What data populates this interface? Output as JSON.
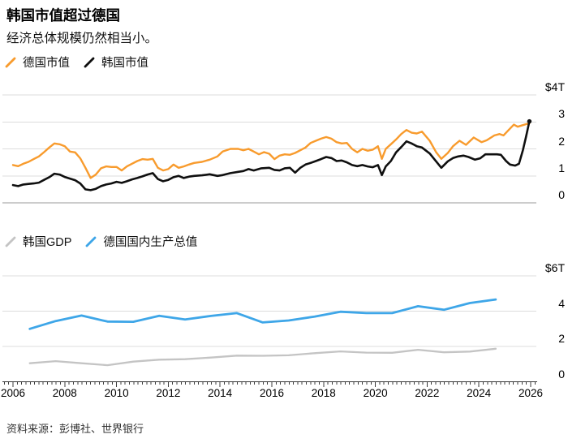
{
  "header": {
    "title": "韩国市值超过德国",
    "subtitle": "经济总体规模仍然相当小。"
  },
  "legends": {
    "market": [
      {
        "label": "德国市值",
        "color": "#F89B2D"
      },
      {
        "label": "韩国市值",
        "color": "#0F0F0F"
      }
    ],
    "gdp": [
      {
        "label": "韩国GDP",
        "color": "#C4C4C4"
      },
      {
        "label": "德国国内生产总值",
        "color": "#3EA6E8"
      }
    ]
  },
  "axes": {
    "top_yticks": [
      "$4T",
      "3",
      "2",
      "1",
      "0"
    ],
    "bottom_yticks": [
      "$6T",
      "4",
      "2",
      "0"
    ],
    "x_labels": [
      "2006",
      "2008",
      "2010",
      "2012",
      "2014",
      "2016",
      "2018",
      "2020",
      "2022",
      "2024",
      "2026"
    ]
  },
  "source": "资料来源：彭博社、世界银行",
  "colors": {
    "germany_market": "#F89B2D",
    "korea_market": "#0F0F0F",
    "korea_gdp": "#C4C4C4",
    "germany_gdp": "#3EA6E8",
    "gridline": "#DCDCDC",
    "zero_line_top": "#9A9A9A",
    "axis_line": "#3C3C3C"
  },
  "chart_data": [
    {
      "type": "line",
      "title": "市值 (股票市场总市值)",
      "unit": "$T",
      "ylim": [
        0,
        4
      ],
      "ytick_values": [
        0,
        1,
        2,
        3,
        4
      ],
      "x_range": [
        2006,
        2026.2
      ],
      "grid": true,
      "legend_position": "top-left",
      "series": [
        {
          "name": "德国市值",
          "color": "#F89B2D",
          "points": [
            [
              2006.0,
              1.4
            ],
            [
              2006.2,
              1.36
            ],
            [
              2006.4,
              1.45
            ],
            [
              2006.6,
              1.52
            ],
            [
              2006.8,
              1.62
            ],
            [
              2007.0,
              1.72
            ],
            [
              2007.2,
              1.88
            ],
            [
              2007.4,
              2.05
            ],
            [
              2007.6,
              2.2
            ],
            [
              2007.8,
              2.17
            ],
            [
              2008.0,
              2.1
            ],
            [
              2008.2,
              1.9
            ],
            [
              2008.4,
              1.87
            ],
            [
              2008.6,
              1.65
            ],
            [
              2008.8,
              1.3
            ],
            [
              2009.0,
              0.92
            ],
            [
              2009.2,
              1.05
            ],
            [
              2009.4,
              1.28
            ],
            [
              2009.6,
              1.35
            ],
            [
              2009.8,
              1.33
            ],
            [
              2010.0,
              1.33
            ],
            [
              2010.2,
              1.2
            ],
            [
              2010.4,
              1.35
            ],
            [
              2010.6,
              1.45
            ],
            [
              2010.8,
              1.55
            ],
            [
              2011.0,
              1.62
            ],
            [
              2011.2,
              1.6
            ],
            [
              2011.4,
              1.63
            ],
            [
              2011.6,
              1.3
            ],
            [
              2011.8,
              1.2
            ],
            [
              2012.0,
              1.25
            ],
            [
              2012.2,
              1.42
            ],
            [
              2012.4,
              1.3
            ],
            [
              2012.6,
              1.35
            ],
            [
              2012.8,
              1.42
            ],
            [
              2013.0,
              1.48
            ],
            [
              2013.3,
              1.52
            ],
            [
              2013.6,
              1.6
            ],
            [
              2013.9,
              1.72
            ],
            [
              2014.1,
              1.9
            ],
            [
              2014.4,
              2.0
            ],
            [
              2014.7,
              2.0
            ],
            [
              2014.9,
              1.95
            ],
            [
              2015.1,
              2.0
            ],
            [
              2015.3,
              1.9
            ],
            [
              2015.5,
              1.8
            ],
            [
              2015.7,
              1.88
            ],
            [
              2015.9,
              1.82
            ],
            [
              2016.1,
              1.62
            ],
            [
              2016.3,
              1.75
            ],
            [
              2016.5,
              1.8
            ],
            [
              2016.7,
              1.78
            ],
            [
              2016.9,
              1.85
            ],
            [
              2017.1,
              1.95
            ],
            [
              2017.3,
              2.05
            ],
            [
              2017.5,
              2.22
            ],
            [
              2017.7,
              2.3
            ],
            [
              2017.9,
              2.38
            ],
            [
              2018.1,
              2.44
            ],
            [
              2018.3,
              2.38
            ],
            [
              2018.5,
              2.25
            ],
            [
              2018.7,
              2.2
            ],
            [
              2018.9,
              2.22
            ],
            [
              2019.1,
              2.0
            ],
            [
              2019.3,
              1.87
            ],
            [
              2019.5,
              2.0
            ],
            [
              2019.7,
              1.93
            ],
            [
              2019.9,
              1.97
            ],
            [
              2020.1,
              2.1
            ],
            [
              2020.25,
              1.63
            ],
            [
              2020.4,
              2.0
            ],
            [
              2020.6,
              2.17
            ],
            [
              2020.8,
              2.35
            ],
            [
              2021.0,
              2.55
            ],
            [
              2021.2,
              2.7
            ],
            [
              2021.4,
              2.6
            ],
            [
              2021.6,
              2.57
            ],
            [
              2021.8,
              2.64
            ],
            [
              2022.1,
              2.3
            ],
            [
              2022.35,
              1.87
            ],
            [
              2022.55,
              1.63
            ],
            [
              2022.8,
              1.85
            ],
            [
              2023.0,
              2.1
            ],
            [
              2023.25,
              2.3
            ],
            [
              2023.5,
              2.15
            ],
            [
              2023.8,
              2.42
            ],
            [
              2024.1,
              2.25
            ],
            [
              2024.3,
              2.32
            ],
            [
              2024.6,
              2.5
            ],
            [
              2024.8,
              2.55
            ],
            [
              2024.95,
              2.5
            ],
            [
              2025.15,
              2.7
            ],
            [
              2025.35,
              2.9
            ],
            [
              2025.5,
              2.82
            ],
            [
              2025.7,
              2.88
            ],
            [
              2025.95,
              2.95
            ]
          ]
        },
        {
          "name": "韩国市值",
          "color": "#0F0F0F",
          "end_marker": true,
          "points": [
            [
              2006.0,
              0.66
            ],
            [
              2006.2,
              0.62
            ],
            [
              2006.4,
              0.68
            ],
            [
              2006.6,
              0.7
            ],
            [
              2006.8,
              0.72
            ],
            [
              2007.0,
              0.75
            ],
            [
              2007.2,
              0.85
            ],
            [
              2007.4,
              0.95
            ],
            [
              2007.6,
              1.08
            ],
            [
              2007.8,
              1.05
            ],
            [
              2008.0,
              0.96
            ],
            [
              2008.2,
              0.9
            ],
            [
              2008.4,
              0.84
            ],
            [
              2008.6,
              0.72
            ],
            [
              2008.8,
              0.5
            ],
            [
              2009.0,
              0.47
            ],
            [
              2009.2,
              0.52
            ],
            [
              2009.4,
              0.62
            ],
            [
              2009.6,
              0.68
            ],
            [
              2009.8,
              0.72
            ],
            [
              2010.0,
              0.78
            ],
            [
              2010.2,
              0.74
            ],
            [
              2010.4,
              0.8
            ],
            [
              2010.6,
              0.87
            ],
            [
              2010.8,
              0.92
            ],
            [
              2011.0,
              0.98
            ],
            [
              2011.2,
              1.05
            ],
            [
              2011.4,
              1.1
            ],
            [
              2011.6,
              0.88
            ],
            [
              2011.8,
              0.8
            ],
            [
              2012.0,
              0.85
            ],
            [
              2012.2,
              0.95
            ],
            [
              2012.4,
              1.0
            ],
            [
              2012.6,
              0.92
            ],
            [
              2012.8,
              0.97
            ],
            [
              2013.0,
              1.0
            ],
            [
              2013.3,
              1.02
            ],
            [
              2013.6,
              1.06
            ],
            [
              2013.9,
              1.0
            ],
            [
              2014.1,
              1.03
            ],
            [
              2014.4,
              1.1
            ],
            [
              2014.7,
              1.15
            ],
            [
              2014.9,
              1.18
            ],
            [
              2015.1,
              1.25
            ],
            [
              2015.3,
              1.2
            ],
            [
              2015.6,
              1.28
            ],
            [
              2015.9,
              1.3
            ],
            [
              2016.1,
              1.22
            ],
            [
              2016.3,
              1.2
            ],
            [
              2016.5,
              1.28
            ],
            [
              2016.7,
              1.3
            ],
            [
              2016.9,
              1.12
            ],
            [
              2017.1,
              1.3
            ],
            [
              2017.3,
              1.42
            ],
            [
              2017.5,
              1.48
            ],
            [
              2017.7,
              1.55
            ],
            [
              2017.9,
              1.62
            ],
            [
              2018.1,
              1.7
            ],
            [
              2018.3,
              1.66
            ],
            [
              2018.5,
              1.55
            ],
            [
              2018.7,
              1.57
            ],
            [
              2018.9,
              1.5
            ],
            [
              2019.1,
              1.4
            ],
            [
              2019.3,
              1.36
            ],
            [
              2019.5,
              1.4
            ],
            [
              2019.7,
              1.35
            ],
            [
              2019.9,
              1.32
            ],
            [
              2020.1,
              1.4
            ],
            [
              2020.25,
              1.03
            ],
            [
              2020.4,
              1.35
            ],
            [
              2020.6,
              1.55
            ],
            [
              2020.8,
              1.87
            ],
            [
              2021.0,
              2.07
            ],
            [
              2021.2,
              2.28
            ],
            [
              2021.4,
              2.2
            ],
            [
              2021.6,
              2.1
            ],
            [
              2021.8,
              2.05
            ],
            [
              2022.1,
              1.83
            ],
            [
              2022.35,
              1.53
            ],
            [
              2022.55,
              1.3
            ],
            [
              2022.8,
              1.54
            ],
            [
              2023.0,
              1.66
            ],
            [
              2023.2,
              1.72
            ],
            [
              2023.4,
              1.75
            ],
            [
              2023.6,
              1.7
            ],
            [
              2023.85,
              1.6
            ],
            [
              2024.05,
              1.65
            ],
            [
              2024.25,
              1.8
            ],
            [
              2024.5,
              1.8
            ],
            [
              2024.7,
              1.8
            ],
            [
              2024.85,
              1.78
            ],
            [
              2025.05,
              1.55
            ],
            [
              2025.2,
              1.42
            ],
            [
              2025.4,
              1.38
            ],
            [
              2025.55,
              1.45
            ],
            [
              2025.7,
              1.95
            ],
            [
              2025.82,
              2.45
            ],
            [
              2025.95,
              3.02
            ]
          ]
        }
      ]
    },
    {
      "type": "line",
      "title": "国内生产总值 (GDP)",
      "unit": "$T",
      "ylim": [
        0,
        6
      ],
      "ytick_values": [
        0,
        2,
        4,
        6
      ],
      "x_range": [
        2006,
        2026.2
      ],
      "grid": true,
      "legend_position": "top-left",
      "categories": [
        2006,
        2007,
        2008,
        2009,
        2010,
        2011,
        2012,
        2013,
        2014,
        2015,
        2016,
        2017,
        2018,
        2019,
        2020,
        2021,
        2022,
        2023,
        2024
      ],
      "series": [
        {
          "name": "韩国GDP",
          "color": "#C4C4C4",
          "values": [
            1.05,
            1.17,
            1.05,
            0.94,
            1.14,
            1.25,
            1.28,
            1.37,
            1.48,
            1.47,
            1.5,
            1.62,
            1.72,
            1.65,
            1.64,
            1.81,
            1.67,
            1.71,
            1.87
          ]
        },
        {
          "name": "德国国内生产总值",
          "color": "#3EA6E8",
          "values": [
            3.0,
            3.44,
            3.75,
            3.41,
            3.4,
            3.74,
            3.53,
            3.73,
            3.89,
            3.36,
            3.47,
            3.69,
            3.97,
            3.89,
            3.89,
            4.28,
            4.08,
            4.46,
            4.66
          ]
        }
      ]
    }
  ]
}
